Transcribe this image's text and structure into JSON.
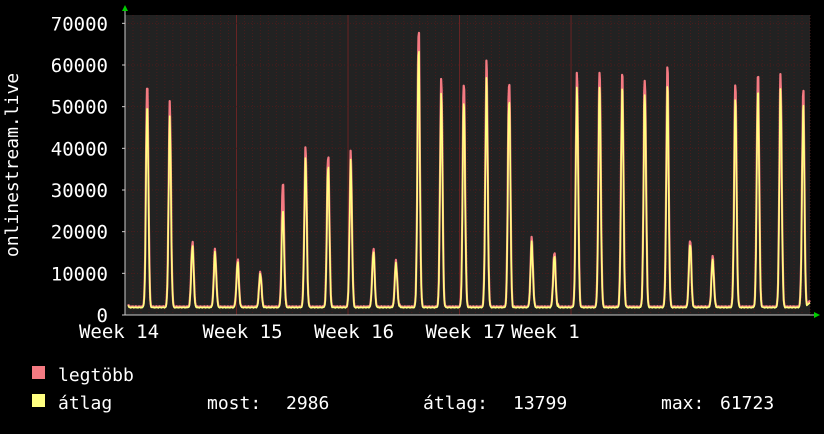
{
  "chart_data": {
    "type": "area",
    "ylabel": "onlinestream.live",
    "ylim": [
      0,
      72000
    ],
    "grid": true,
    "legend_placement": "bottom-left",
    "x_tick_labels": [
      "Week 14",
      "Week 15",
      "Week 16",
      "Week 17",
      "Week 1"
    ],
    "y_tick_labels": [
      "0",
      "10000",
      "20000",
      "30000",
      "40000",
      "50000",
      "60000",
      "70000"
    ],
    "y_ticks": [
      0,
      10000,
      20000,
      30000,
      40000,
      50000,
      60000,
      70000
    ],
    "x_days_range": [
      0,
      43
    ],
    "x_tick_days": [
      0,
      7,
      14,
      21,
      28
    ],
    "series": [
      {
        "name": "legtöbb",
        "color": "#f47a82",
        "daily_peaks": [
          56000,
          49500,
          17800,
          15500,
          13000,
          10500,
          31500,
          39500,
          39500,
          37500,
          16000,
          13000,
          67500,
          57000,
          56500,
          59000,
          58500,
          18000,
          15000,
          58500,
          58000,
          58000,
          58000,
          57500,
          18500,
          14000,
          55000,
          59000,
          57000,
          53000
        ],
        "trough": 2000,
        "end_value": 3500
      },
      {
        "name": "átlag",
        "color": "#ffff80",
        "daily_peaks": [
          51000,
          46000,
          16800,
          14800,
          12400,
          10000,
          25000,
          37000,
          37000,
          35500,
          15200,
          12400,
          63000,
          53500,
          52000,
          55000,
          54000,
          17000,
          14200,
          55000,
          54500,
          54500,
          54500,
          53000,
          17500,
          13200,
          51500,
          55000,
          53500,
          49500
        ],
        "trough": 1800,
        "end_value": 2986
      }
    ],
    "stats": {
      "now_label": "most:",
      "now_value": "2986",
      "avg_label": "átlag:",
      "avg_value": "13799",
      "max_label": "max:",
      "max_value": "61723"
    }
  },
  "colors": {
    "background": "#000000",
    "plot_background": "#222222",
    "grid": "#4a1c1c",
    "text": "#ffffff",
    "axis_arrow": "#00cc00"
  }
}
